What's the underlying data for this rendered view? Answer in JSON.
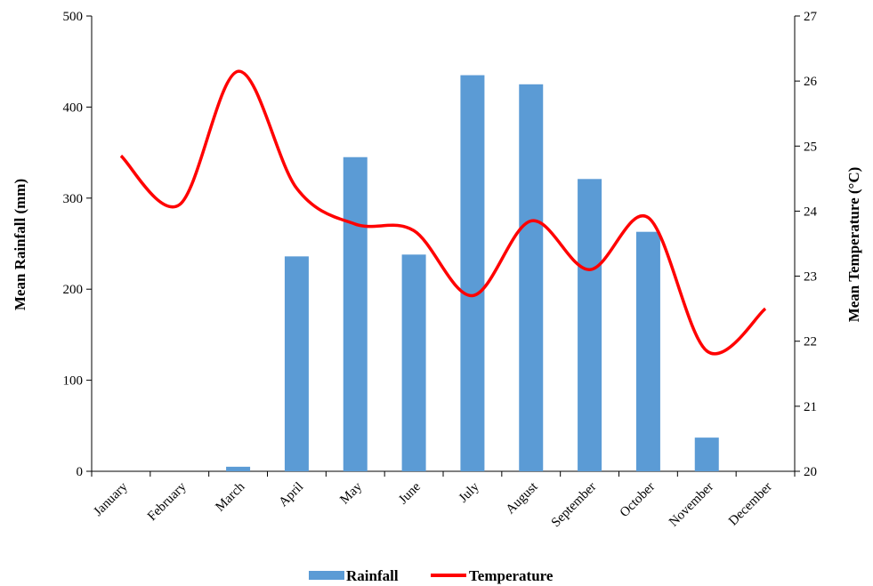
{
  "chart_data": {
    "type": "bar+line",
    "categories": [
      "January",
      "February",
      "March",
      "April",
      "May",
      "June",
      "July",
      "August",
      "September",
      "October",
      "November",
      "December"
    ],
    "series": [
      {
        "name": "Rainfall",
        "type": "bar",
        "axis": "left",
        "color": "#5b9bd5",
        "values": [
          0,
          0,
          5,
          236,
          345,
          238,
          435,
          425,
          321,
          263,
          37,
          0
        ]
      },
      {
        "name": "Temperature",
        "type": "line",
        "axis": "right",
        "color": "#ff0000",
        "values": [
          24.85,
          24.1,
          26.15,
          24.35,
          23.8,
          23.7,
          22.7,
          23.85,
          23.1,
          23.9,
          21.85,
          22.5
        ]
      }
    ],
    "y_left": {
      "label": "Mean Rainfall (mm)",
      "min": 0,
      "max": 500,
      "step": 100,
      "ticks": [
        "0",
        "100",
        "200",
        "300",
        "400",
        "500"
      ]
    },
    "y_right": {
      "label": "Mean Temperature (°C)",
      "min": 20,
      "max": 27,
      "step": 1,
      "ticks": [
        "20",
        "21",
        "22",
        "23",
        "24",
        "25",
        "26",
        "27"
      ]
    },
    "grid": false,
    "legend": "bottom-center"
  }
}
